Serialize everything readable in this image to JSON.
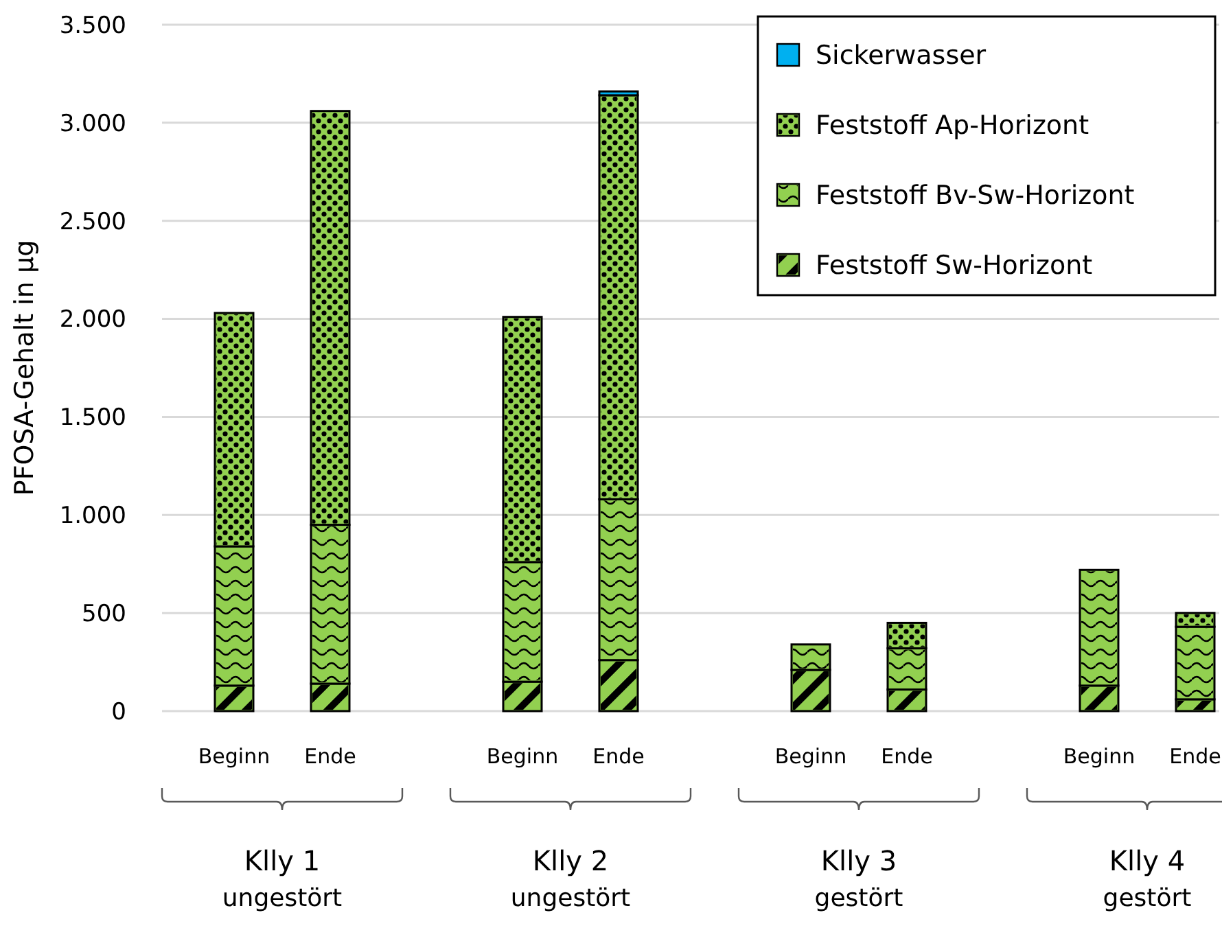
{
  "chart_data": {
    "type": "bar",
    "stacked": true,
    "ylabel": "PFOSA-Gehalt in µg",
    "categories": [
      "Beginn",
      "Ende",
      "Beginn",
      "Ende",
      "Beginn",
      "Ende",
      "Beginn",
      "Ende"
    ],
    "series": [
      {
        "name": "Feststoff Sw-Horizont",
        "color": "#92d050",
        "values": [
          130,
          140,
          150,
          260,
          210,
          110,
          130,
          60
        ]
      },
      {
        "name": "Feststoff Bv-Sw-Horizont",
        "color": "#92d050",
        "values": [
          710,
          810,
          610,
          820,
          130,
          210,
          590,
          370
        ]
      },
      {
        "name": "Feststoff Ap-Horizont",
        "color": "#92d050",
        "values": [
          1190,
          2110,
          1250,
          2060,
          0,
          130,
          0,
          70
        ]
      },
      {
        "name": "Sickerwasser",
        "color": "#00b0f0",
        "values": [
          0,
          0,
          0,
          20,
          0,
          0,
          0,
          0
        ]
      }
    ],
    "ylim": [
      0,
      3500
    ],
    "yticks": [
      {
        "value": 0,
        "label": "0"
      },
      {
        "value": 500,
        "label": "500"
      },
      {
        "value": 1000,
        "label": "1.000"
      },
      {
        "value": 1500,
        "label": "1.500"
      },
      {
        "value": 2000,
        "label": "2.000"
      },
      {
        "value": 2500,
        "label": "2.500"
      },
      {
        "value": 3000,
        "label": "3.000"
      },
      {
        "value": 3500,
        "label": "3.500"
      }
    ],
    "grid": "y",
    "legend": "top right",
    "annotations": [
      "Klly 1\nungestört",
      "Klly 2\nungestört",
      "Klly 3\ngestört",
      "Klly 4\ngestört"
    ]
  }
}
